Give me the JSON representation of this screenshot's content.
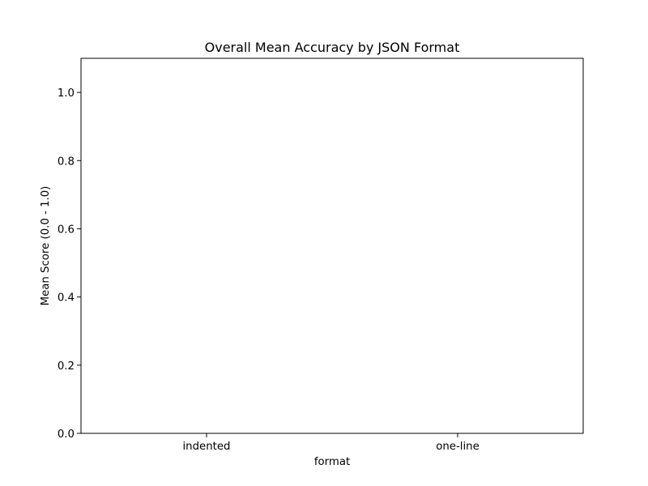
{
  "chart_data": {
    "type": "bar",
    "title": "Overall Mean Accuracy by JSON Format",
    "xlabel": "format",
    "ylabel": "Mean Score (0.0 - 1.0)",
    "categories": [
      "indented",
      "one-line"
    ],
    "values": [
      0,
      0
    ],
    "ylim": [
      0,
      1.1
    ],
    "yticks": [
      0.0,
      0.2,
      0.4,
      0.6,
      0.8,
      1.0
    ],
    "ytick_labels": [
      "0.0",
      "0.2",
      "0.4",
      "0.6",
      "0.8",
      "1.0"
    ],
    "grid": false,
    "bar_color": "#1f77b4"
  }
}
